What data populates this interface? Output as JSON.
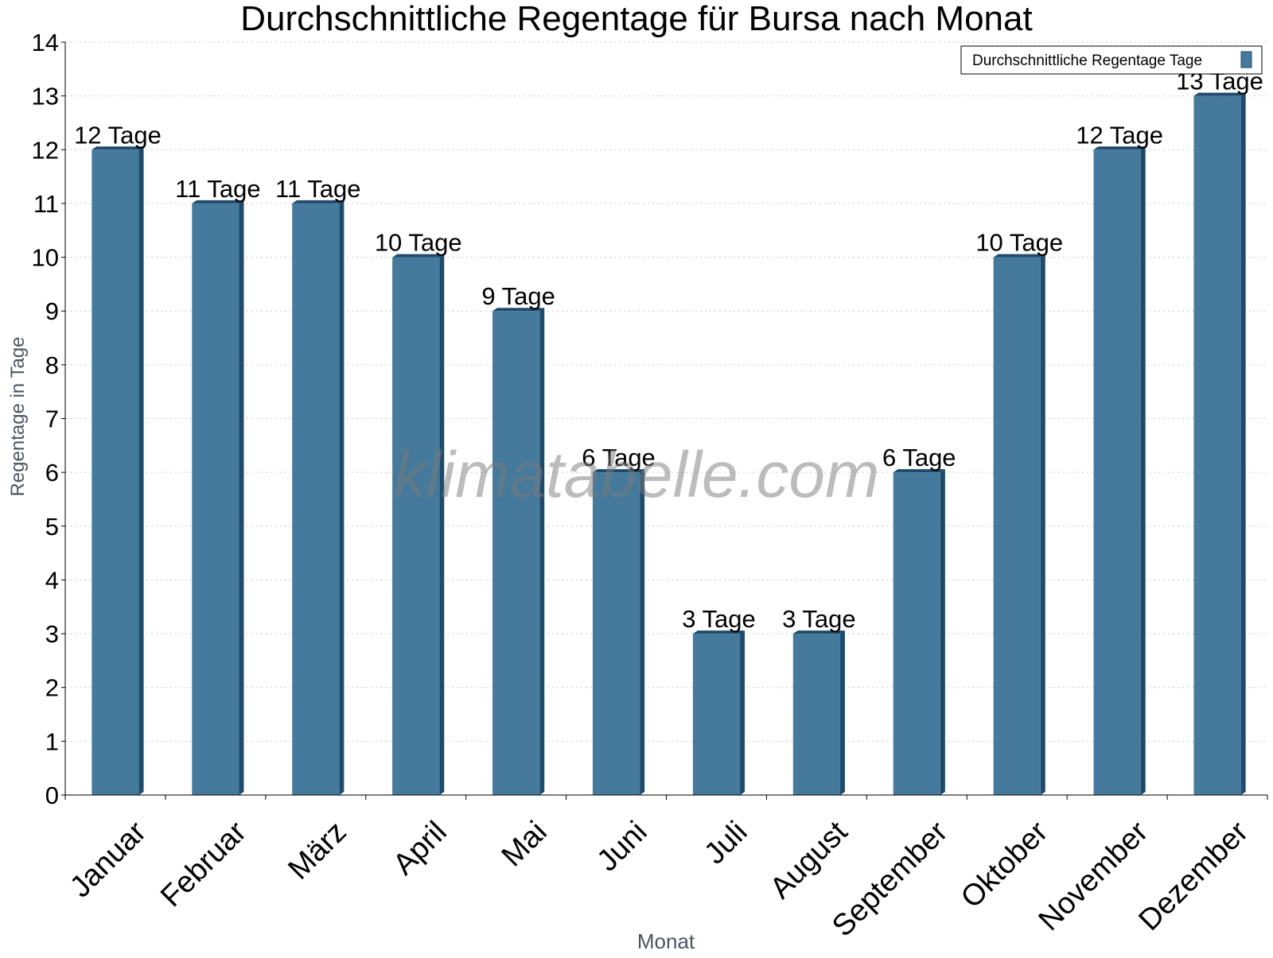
{
  "chart_data": {
    "type": "bar",
    "title": "Durchschnittliche Regentage für Bursa nach Monat",
    "xlabel": "Monat",
    "ylabel": "Regentage in Tage",
    "categories": [
      "Januar",
      "Februar",
      "März",
      "April",
      "Mai",
      "Juni",
      "Juli",
      "August",
      "September",
      "Oktober",
      "November",
      "Dezember"
    ],
    "series": [
      {
        "name": "Durchschnittliche Regentage Tage",
        "values": [
          12,
          11,
          11,
          10,
          9,
          6,
          3,
          3,
          6,
          10,
          12,
          13
        ],
        "data_labels": [
          "12 Tage",
          "11 Tage",
          "11 Tage",
          "10 Tage",
          "9 Tage",
          "6 Tage",
          "3 Tage",
          "3 Tage",
          "6 Tage",
          "10 Tage",
          "12 Tage",
          "13 Tage"
        ],
        "color": "#457a9c",
        "side_color": "#1e4b6b"
      }
    ],
    "ylim": [
      0,
      14
    ],
    "yticks": [
      0,
      1,
      2,
      3,
      4,
      5,
      6,
      7,
      8,
      9,
      10,
      11,
      12,
      13,
      14
    ],
    "grid": true,
    "legend_position": "top-right",
    "watermark": "klimatabelle.com"
  }
}
